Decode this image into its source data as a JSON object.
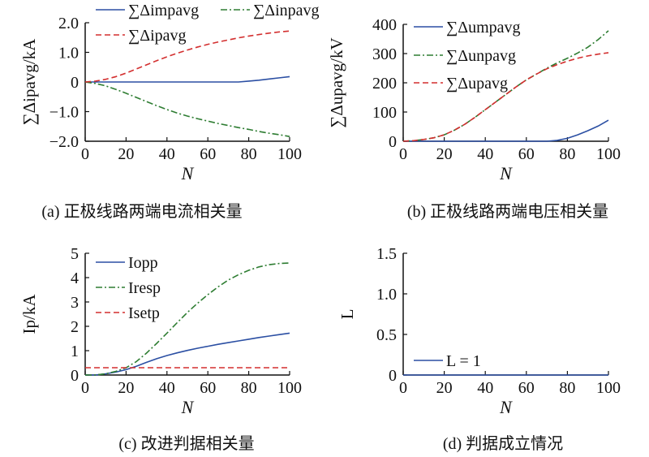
{
  "colors": {
    "blue": "#2b4fa3",
    "green": "#2e7d32",
    "red": "#d32f2f",
    "axis": "#111111"
  },
  "captions": [
    "(a) 正极线路两端电流相关量",
    "(b) 正极线路两端电压相关量",
    "(c) 改进判据相关量",
    "(d) 判据成立情况"
  ],
  "chart_data": [
    {
      "type": "line",
      "xlabel": "N",
      "ylabel": "∑Δipavg/kA",
      "xlim": [
        0,
        100
      ],
      "ylim": [
        -2,
        2
      ],
      "xticks": [
        "0",
        "20",
        "40",
        "60",
        "80",
        "100"
      ],
      "yticks": [
        "−2.0",
        "−1.0",
        "0",
        "1.0",
        "2.0"
      ],
      "legend": "top",
      "x": [
        0,
        5,
        10,
        15,
        20,
        25,
        30,
        35,
        40,
        45,
        50,
        55,
        60,
        65,
        70,
        75,
        80,
        85,
        90,
        95,
        100
      ],
      "series": [
        {
          "name": "∑Δimpavg",
          "color": "blue",
          "dash": "solid",
          "values": [
            0,
            0,
            0,
            0,
            0,
            0,
            0,
            0,
            0,
            0,
            0,
            0,
            0,
            0,
            0,
            0,
            0.03,
            0.06,
            0.1,
            0.14,
            0.18
          ]
        },
        {
          "name": "∑Δinpavg",
          "color": "green",
          "dash": "dashdot",
          "values": [
            0,
            -0.05,
            -0.13,
            -0.25,
            -0.38,
            -0.52,
            -0.66,
            -0.8,
            -0.93,
            -1.05,
            -1.15,
            -1.24,
            -1.32,
            -1.4,
            -1.47,
            -1.54,
            -1.6,
            -1.67,
            -1.73,
            -1.78,
            -1.84
          ]
        },
        {
          "name": "∑Δipavg",
          "color": "red",
          "dash": "dashed",
          "values": [
            0,
            0.03,
            0.09,
            0.18,
            0.3,
            0.44,
            0.58,
            0.72,
            0.85,
            0.97,
            1.08,
            1.18,
            1.27,
            1.35,
            1.42,
            1.49,
            1.55,
            1.6,
            1.65,
            1.69,
            1.72
          ]
        }
      ]
    },
    {
      "type": "line",
      "xlabel": "N",
      "ylabel": "∑Δupavg/kV",
      "xlim": [
        0,
        100
      ],
      "ylim": [
        0,
        400
      ],
      "xticks": [
        "0",
        "20",
        "40",
        "60",
        "80",
        "100"
      ],
      "yticks": [
        "0",
        "100",
        "200",
        "300",
        "400"
      ],
      "legend": "top-left",
      "x": [
        0,
        5,
        10,
        15,
        20,
        25,
        30,
        35,
        40,
        45,
        50,
        55,
        60,
        65,
        70,
        75,
        80,
        85,
        90,
        95,
        100
      ],
      "series": [
        {
          "name": "∑Δumpavg",
          "color": "blue",
          "dash": "solid",
          "values": [
            0,
            0,
            0,
            0,
            0,
            0,
            0,
            0,
            0,
            0,
            0,
            0,
            0,
            0,
            0,
            3,
            10,
            22,
            36,
            52,
            72
          ]
        },
        {
          "name": "∑Δunpavg",
          "color": "green",
          "dash": "dashdot",
          "values": [
            0,
            2,
            6,
            12,
            22,
            38,
            58,
            82,
            108,
            134,
            160,
            186,
            210,
            230,
            250,
            268,
            284,
            302,
            322,
            348,
            378
          ]
        },
        {
          "name": "∑Δupavg",
          "color": "red",
          "dash": "dashed",
          "values": [
            0,
            2,
            6,
            12,
            22,
            38,
            58,
            82,
            108,
            134,
            160,
            186,
            210,
            230,
            248,
            262,
            274,
            284,
            292,
            298,
            303
          ]
        }
      ]
    },
    {
      "type": "line",
      "xlabel": "N",
      "ylabel": "Ip/kA",
      "xlim": [
        0,
        100
      ],
      "ylim": [
        0,
        5
      ],
      "xticks": [
        "0",
        "20",
        "40",
        "60",
        "80",
        "100"
      ],
      "yticks": [
        "0",
        "1",
        "2",
        "3",
        "4",
        "5"
      ],
      "legend": "top-left",
      "x": [
        0,
        5,
        10,
        15,
        20,
        25,
        30,
        35,
        40,
        45,
        50,
        55,
        60,
        65,
        70,
        75,
        80,
        85,
        90,
        95,
        100
      ],
      "series": [
        {
          "name": "Iopp",
          "color": "blue",
          "dash": "solid",
          "values": [
            0,
            0,
            0.05,
            0.12,
            0.22,
            0.36,
            0.52,
            0.67,
            0.8,
            0.91,
            1.01,
            1.1,
            1.18,
            1.26,
            1.33,
            1.4,
            1.47,
            1.54,
            1.6,
            1.66,
            1.72
          ]
        },
        {
          "name": "Iresp",
          "color": "green",
          "dash": "dashdot",
          "values": [
            0,
            0,
            0.05,
            0.15,
            0.3,
            0.55,
            0.9,
            1.3,
            1.72,
            2.15,
            2.57,
            2.95,
            3.3,
            3.62,
            3.9,
            4.12,
            4.3,
            4.44,
            4.53,
            4.58,
            4.6
          ]
        },
        {
          "name": "Isetp",
          "color": "red",
          "dash": "dashed",
          "values": [
            0.3,
            0.3,
            0.3,
            0.3,
            0.3,
            0.3,
            0.3,
            0.3,
            0.3,
            0.3,
            0.3,
            0.3,
            0.3,
            0.3,
            0.3,
            0.3,
            0.3,
            0.3,
            0.3,
            0.3,
            0.3
          ]
        }
      ]
    },
    {
      "type": "line",
      "xlabel": "N",
      "ylabel": "L",
      "xlim": [
        0,
        100
      ],
      "ylim": [
        0,
        1.5
      ],
      "xticks": [
        "0",
        "20",
        "40",
        "60",
        "80",
        "100"
      ],
      "yticks": [
        "0",
        "0.5",
        "1.0",
        "1.5"
      ],
      "legend": "bottom-left",
      "x": [
        0,
        100
      ],
      "series": [
        {
          "name": "L = 1",
          "color": "blue",
          "dash": "solid",
          "values": [
            0,
            0
          ]
        }
      ]
    }
  ]
}
